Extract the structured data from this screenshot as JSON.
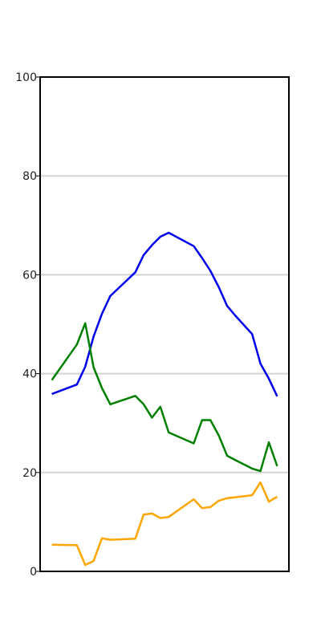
{
  "chart_data": {
    "type": "line",
    "title": "",
    "xlabel": "",
    "ylabel": "",
    "ylim": [
      0,
      100
    ],
    "xlim": [
      -1.4,
      28.4
    ],
    "y_ticks": [
      0,
      20,
      40,
      60,
      80,
      100
    ],
    "y_tick_labels": [
      "0",
      "20",
      "40",
      "60",
      "80",
      "100"
    ],
    "x_ticks_visible": false,
    "grid": "horizontal",
    "legend": "none",
    "x": [
      0,
      3,
      4,
      5,
      6,
      7,
      10,
      11,
      12,
      13,
      14,
      17,
      18,
      20,
      21,
      22,
      27
    ],
    "series": [
      {
        "name": "blue",
        "color": "#0000ee",
        "x": [
          0,
          3,
          4,
          5,
          6,
          7,
          10,
          11,
          12,
          13,
          14,
          17,
          18,
          19,
          20,
          21,
          22,
          24,
          25,
          26,
          27
        ],
        "values": [
          35.9,
          37.8,
          41.4,
          47.5,
          52.1,
          55.7,
          60.5,
          64.0,
          66.0,
          67.7,
          68.5,
          65.8,
          63.4,
          60.8,
          57.5,
          53.7,
          51.7,
          48.0,
          42.0,
          39.0,
          35.4
        ]
      },
      {
        "name": "green",
        "color": "#008000",
        "x": [
          0,
          3,
          4,
          5,
          6,
          7,
          10,
          11,
          12,
          13,
          14,
          17,
          18,
          19,
          20,
          21,
          22,
          24,
          25,
          26,
          27
        ],
        "values": [
          38.7,
          45.9,
          50.2,
          41.3,
          37.1,
          33.8,
          35.5,
          33.8,
          31.1,
          33.3,
          28.1,
          25.9,
          30.6,
          30.6,
          27.5,
          23.4,
          22.5,
          20.8,
          20.3,
          26.1,
          21.3
        ]
      },
      {
        "name": "orange",
        "color": "#ffa500",
        "x": [
          0,
          3,
          4,
          5,
          6,
          7,
          10,
          11,
          12,
          13,
          14,
          17,
          18,
          19,
          20,
          21,
          22,
          24,
          25,
          26,
          27
        ],
        "values": [
          5.4,
          5.3,
          1.3,
          2.1,
          6.7,
          6.4,
          6.6,
          11.5,
          11.7,
          10.8,
          11.0,
          14.6,
          12.8,
          13.0,
          14.3,
          14.8,
          15.0,
          15.4,
          18.0,
          14.1,
          15.1
        ]
      }
    ]
  }
}
